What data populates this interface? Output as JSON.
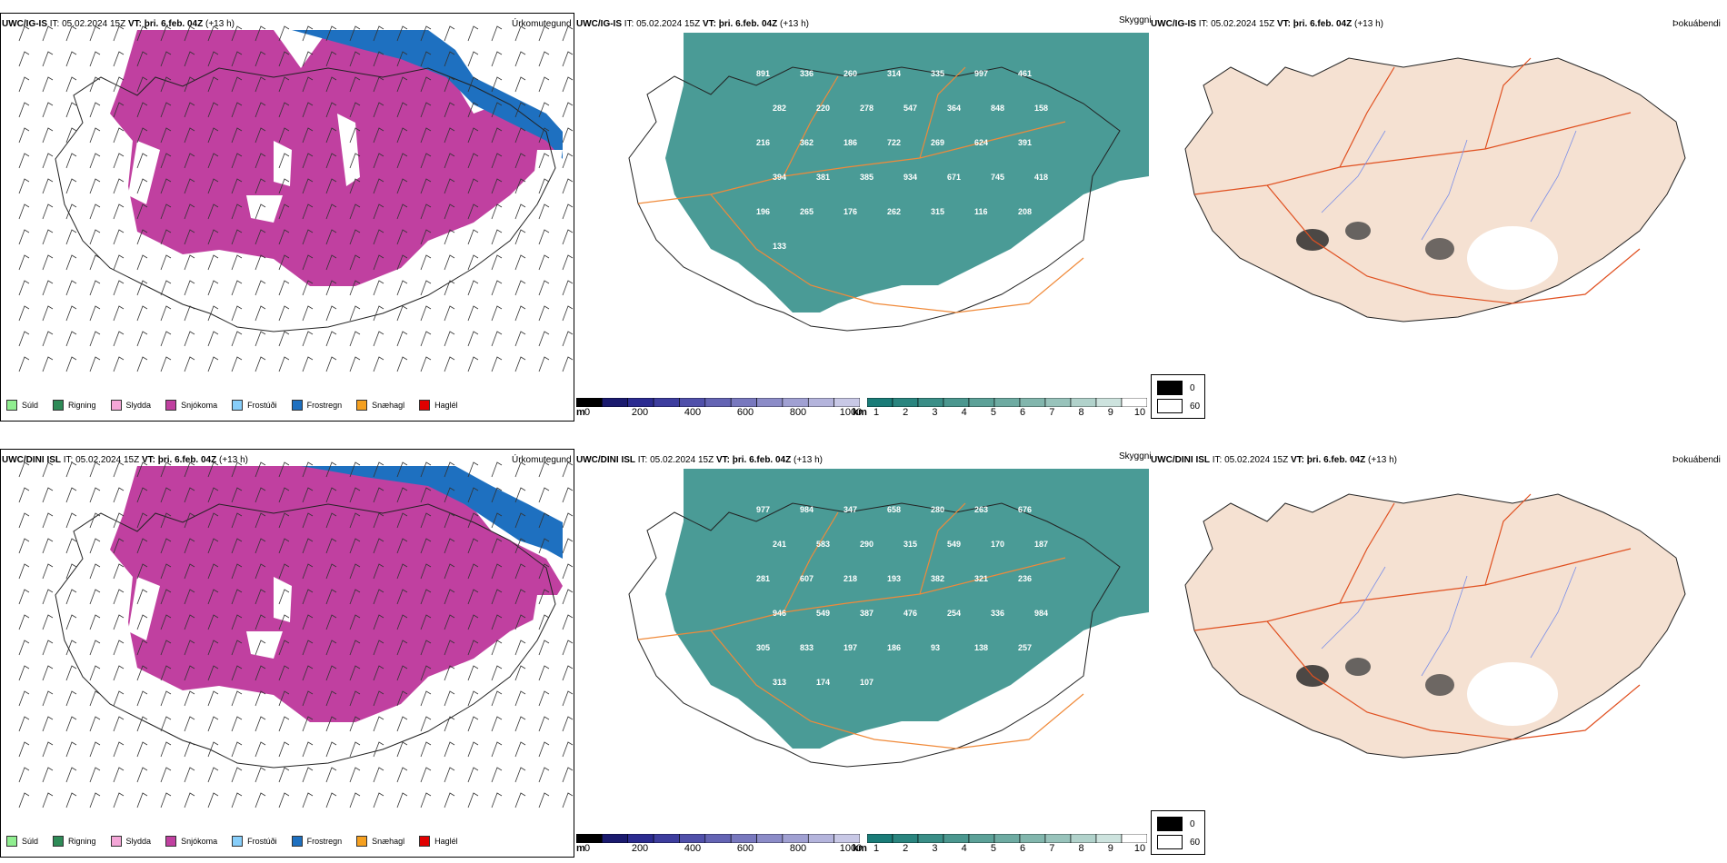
{
  "rows": [
    {
      "model": "UWC/IG-IS",
      "it_label": "IT:",
      "it_value": "05.02.2024 15Z",
      "vt_label": "VT: þri. 6.feb. 04Z",
      "lead": "(+13 h)",
      "precip_title": "Úrkomutegund",
      "cloud_title": "Skyggni",
      "fog_title": "Þokuábendi",
      "cloud_values": [
        "891",
        "336",
        "260",
        "314",
        "335",
        "997",
        "461",
        "282",
        "220",
        "278",
        "547",
        "364",
        "848",
        "158",
        "216",
        "362",
        "186",
        "722",
        "269",
        "624",
        "391",
        "394",
        "381",
        "385",
        "934",
        "671",
        "745",
        "418",
        "196",
        "265",
        "176",
        "262",
        "315",
        "116",
        "208",
        "133"
      ]
    },
    {
      "model": "UWC/DINI ISL",
      "it_label": "IT:",
      "it_value": "05.02.2024 15Z",
      "vt_label": "VT: þri. 6.feb. 04Z",
      "lead": "(+13 h)",
      "precip_title": "Úrkomutegund",
      "cloud_title": "Skyggni",
      "fog_title": "Þokuábendi",
      "cloud_values": [
        "977",
        "984",
        "347",
        "658",
        "280",
        "263",
        "676",
        "241",
        "583",
        "290",
        "315",
        "549",
        "170",
        "187",
        "281",
        "607",
        "218",
        "193",
        "382",
        "321",
        "236",
        "946",
        "549",
        "387",
        "476",
        "254",
        "336",
        "984",
        "305",
        "833",
        "197",
        "186",
        "93",
        "138",
        "257",
        "313",
        "174",
        "107"
      ]
    }
  ],
  "precip_legend": [
    {
      "label": "Súld",
      "color": "#90ee90"
    },
    {
      "label": "Rigning",
      "color": "#2e8b57"
    },
    {
      "label": "Slydda",
      "color": "#f4a6d7"
    },
    {
      "label": "Snjókoma",
      "color": "#c040a0"
    },
    {
      "label": "Frostúði",
      "color": "#87cefa"
    },
    {
      "label": "Frostregn",
      "color": "#1e70c0"
    },
    {
      "label": "Snæhagl",
      "color": "#f5a020"
    },
    {
      "label": "Haglél",
      "color": "#e00000"
    }
  ],
  "height_colorbar": {
    "unit": "m",
    "ticks": [
      "0",
      "200",
      "400",
      "600",
      "800",
      "1000"
    ],
    "colors": [
      "#000000",
      "#1a1a6e",
      "#2b2b90",
      "#3d3d9e",
      "#5050aa",
      "#6464b4",
      "#7878be",
      "#8c8cc8",
      "#a0a0d2",
      "#b4b4dc",
      "#c8c8e6"
    ]
  },
  "visibility_colorbar": {
    "unit": "km",
    "ticks": [
      "1",
      "2",
      "3",
      "4",
      "5",
      "6",
      "7",
      "8",
      "9",
      "10"
    ],
    "colors": [
      "#1a7c78",
      "#2a857f",
      "#3a8e87",
      "#4b978f",
      "#5ca198",
      "#6eaba2",
      "#82b6ad",
      "#98c3bb",
      "#b1d2cb",
      "#cde3de",
      "#ffffff"
    ]
  },
  "fog_legend": [
    {
      "label": "0",
      "color": "#000000"
    },
    {
      "label": "60",
      "color": "#ffffff"
    }
  ],
  "colors": {
    "snow": "#c040a0",
    "freezing_rain": "#1e70c0",
    "teal": "#2a8a84",
    "road": "#f08a3a",
    "land": "#f5e1d2",
    "river": "#7a8ee8"
  }
}
